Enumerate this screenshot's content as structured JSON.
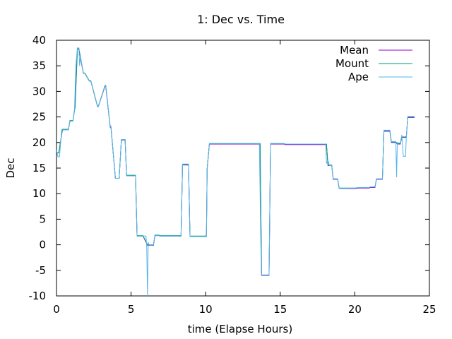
{
  "chart_data": {
    "type": "line",
    "title": "1: Dec vs. Time",
    "xlabel": "time (Elapse Hours)",
    "ylabel": "Dec",
    "xlim": [
      0,
      25
    ],
    "ylim": [
      -10,
      40
    ],
    "xticks": [
      0,
      5,
      10,
      15,
      20,
      25
    ],
    "yticks": [
      -10,
      -5,
      0,
      5,
      10,
      15,
      20,
      25,
      30,
      35,
      40
    ],
    "grid": false,
    "legend_position": "top-right",
    "series": [
      {
        "name": "Mean",
        "color": "#9400d3",
        "x": [
          0,
          0.15,
          0.4,
          0.8,
          0.9,
          1.1,
          1.25,
          1.4,
          1.5,
          1.8,
          1.9,
          2.2,
          2.3,
          2.75,
          2.8,
          3.25,
          3.3,
          3.6,
          3.65,
          3.95,
          4.2,
          4.35,
          4.4,
          4.6,
          4.7,
          4.9,
          5.0,
          5.3,
          5.4,
          5.7,
          5.8,
          6.1,
          6.2,
          6.5,
          6.6,
          6.85,
          6.95,
          8.35,
          8.45,
          8.85,
          8.95,
          10.05,
          10.1,
          10.25,
          10.35,
          13.65,
          13.75,
          14.25,
          14.35,
          15.25,
          15.35,
          18.1,
          18.2,
          18.45,
          18.55,
          18.85,
          18.95,
          20.1,
          20.2,
          20.95,
          21.05,
          21.35,
          21.45,
          21.85,
          21.95,
          22.35,
          22.45,
          22.75,
          22.85,
          23.05,
          23.15,
          23.45,
          23.55,
          24.0
        ],
        "y": [
          18,
          18,
          22.5,
          22.5,
          24.2,
          24.2,
          27,
          38.2,
          38.2,
          33.5,
          33.5,
          32,
          32,
          27,
          27,
          31,
          31,
          23,
          23,
          13,
          13,
          20.5,
          20.5,
          20.5,
          13.5,
          13.5,
          13.5,
          13.5,
          1.7,
          1.7,
          1.7,
          -0.1,
          -0.1,
          -0.1,
          1.8,
          1.8,
          1.7,
          1.7,
          15.6,
          15.6,
          1.6,
          1.6,
          14.8,
          19.7,
          19.7,
          19.7,
          -6,
          -6,
          19.7,
          19.7,
          19.6,
          19.6,
          15.5,
          15.5,
          12.8,
          12.8,
          11,
          11,
          11.1,
          11.1,
          11.2,
          11.2,
          12.8,
          12.8,
          22.2,
          22.2,
          20,
          20,
          19.7,
          19.7,
          21,
          21,
          24.9,
          24.9
        ]
      },
      {
        "name": "Mount",
        "color": "#009e73",
        "x": [
          0,
          0.15,
          0.4,
          0.8,
          0.9,
          1.1,
          1.25,
          1.4,
          1.5,
          1.8,
          1.9,
          2.2,
          2.3,
          2.75,
          2.8,
          3.25,
          3.3,
          3.6,
          3.65,
          3.95,
          4.2,
          4.35,
          4.4,
          4.6,
          4.7,
          4.9,
          5.0,
          5.3,
          5.4,
          5.7,
          5.8,
          6.1,
          6.2,
          6.5,
          6.6,
          6.85,
          6.95,
          8.35,
          8.45,
          8.85,
          8.95,
          10.05,
          10.1,
          10.25,
          10.35,
          13.65,
          13.75,
          14.25,
          14.35,
          15.25,
          15.35,
          18.1,
          18.2,
          18.45,
          18.55,
          18.85,
          18.95,
          20.1,
          20.2,
          20.95,
          21.05,
          21.35,
          21.45,
          21.85,
          21.95,
          22.35,
          22.45,
          22.75,
          22.85,
          23.05,
          23.15,
          23.45,
          23.55,
          24.0
        ],
        "y": [
          18,
          18,
          22.6,
          22.6,
          24.3,
          24.3,
          27.2,
          38.4,
          38.4,
          33.6,
          33.6,
          32.1,
          32.1,
          27.1,
          27.1,
          31.1,
          31.1,
          23.1,
          23.1,
          13,
          13,
          20.6,
          20.6,
          20.6,
          13.6,
          13.6,
          13.6,
          13.6,
          1.8,
          1.8,
          1.8,
          0,
          0,
          0,
          1.9,
          1.9,
          1.8,
          1.8,
          15.7,
          15.7,
          1.7,
          1.7,
          14.9,
          19.8,
          19.8,
          19.8,
          -5.9,
          -5.9,
          19.8,
          19.8,
          19.7,
          19.7,
          15.6,
          15.6,
          12.9,
          12.9,
          11.1,
          11.1,
          11.2,
          11.2,
          11.3,
          11.3,
          12.9,
          12.9,
          22.3,
          22.3,
          20.1,
          20.1,
          19.8,
          19.8,
          21.1,
          21.1,
          25,
          25
        ]
      },
      {
        "name": "Ape",
        "color": "#56b4e9",
        "x": [
          0,
          0.1,
          0.2,
          0.35,
          0.4,
          0.8,
          0.9,
          1.1,
          1.2,
          1.3,
          1.4,
          1.5,
          1.55,
          1.6,
          1.8,
          1.9,
          2.2,
          2.3,
          2.75,
          2.8,
          3.25,
          3.3,
          3.6,
          3.65,
          3.95,
          4.05,
          4.2,
          4.35,
          4.4,
          4.6,
          4.7,
          5.0,
          5.3,
          5.4,
          5.7,
          5.8,
          6.0,
          6.05,
          6.1,
          6.15,
          6.2,
          6.35,
          6.5,
          6.6,
          6.85,
          6.95,
          8.35,
          8.45,
          8.85,
          8.95,
          10.05,
          10.1,
          10.25,
          10.35,
          13.6,
          13.7,
          13.75,
          14.25,
          14.35,
          15.25,
          15.35,
          18.05,
          18.1,
          18.2,
          18.3,
          18.45,
          18.55,
          18.85,
          18.95,
          20.1,
          20.2,
          20.95,
          21.05,
          21.35,
          21.45,
          21.85,
          21.95,
          22.35,
          22.45,
          22.75,
          22.8,
          22.85,
          22.95,
          23.05,
          23.15,
          23.25,
          23.4,
          23.45,
          23.55,
          24.0
        ],
        "y": [
          18.5,
          17.2,
          17.2,
          22.5,
          22.5,
          22.5,
          24.2,
          24.2,
          26,
          35,
          38.5,
          38.5,
          35,
          37,
          33.5,
          33.5,
          32,
          32,
          27,
          27,
          31.2,
          31.2,
          23.2,
          23.2,
          13,
          13,
          13,
          20.6,
          20.6,
          20.6,
          13.5,
          13.5,
          13.5,
          1.7,
          1.7,
          1.7,
          1.7,
          -0.5,
          -10,
          0.5,
          0,
          -0.1,
          0,
          1.8,
          1.8,
          1.7,
          1.7,
          15.8,
          15.8,
          1.6,
          1.6,
          15,
          19.8,
          19.8,
          19.8,
          0,
          -5.9,
          -5.9,
          19.8,
          19.8,
          19.7,
          19.7,
          16,
          16.5,
          15.5,
          15.5,
          12.9,
          12.9,
          11,
          11.1,
          11.2,
          11.2,
          11.3,
          11.3,
          12.9,
          12.9,
          22.4,
          22.4,
          20.2,
          20.2,
          13.2,
          20,
          19.9,
          19.9,
          21.5,
          17.3,
          17.3,
          21,
          25.1,
          25.1
        ]
      }
    ]
  }
}
